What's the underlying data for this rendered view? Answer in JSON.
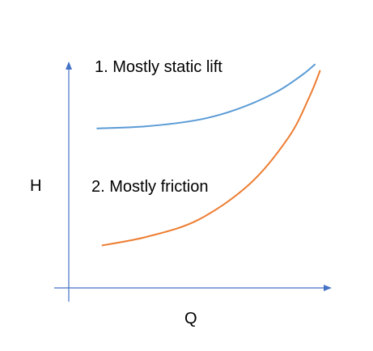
{
  "chart_data": {
    "type": "line",
    "title": "",
    "xlabel": "Q",
    "ylabel": "H",
    "xlim": [
      0,
      1
    ],
    "ylim": [
      0,
      1
    ],
    "grid": false,
    "legend": "none",
    "series": [
      {
        "label": "1. Mostly static lift",
        "color": "#5b9bd5",
        "x": [
          0.11,
          0.3,
          0.5,
          0.65,
          0.8,
          0.9,
          0.95
        ],
        "y": [
          0.75,
          0.76,
          0.79,
          0.84,
          0.92,
          1.0,
          1.05
        ]
      },
      {
        "label": "2. Mostly friction",
        "color": "#ed7d31",
        "x": [
          0.13,
          0.3,
          0.5,
          0.7,
          0.85,
          0.93,
          0.97
        ],
        "y": [
          0.2,
          0.24,
          0.32,
          0.49,
          0.71,
          0.9,
          1.02
        ]
      }
    ],
    "axis_color": "#4472c4"
  }
}
